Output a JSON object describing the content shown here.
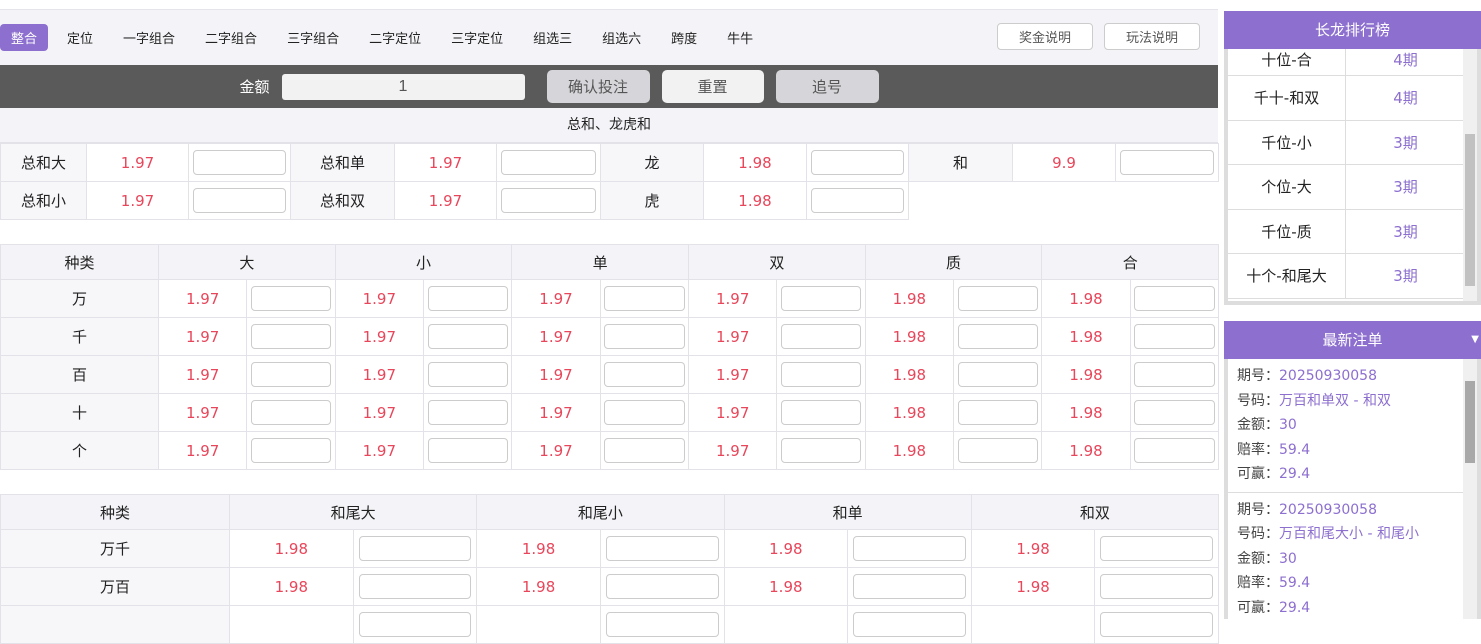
{
  "nav": {
    "tabs": [
      "整合",
      "定位",
      "一字组合",
      "二字组合",
      "三字组合",
      "二字定位",
      "三字定位",
      "组选三",
      "组选六",
      "跨度",
      "牛牛"
    ],
    "active": 0,
    "prize_btn": "奖金说明",
    "rules_btn": "玩法说明"
  },
  "bet_bar": {
    "amount_label": "金额",
    "amount_value": "1",
    "confirm": "确认投注",
    "reset": "重置",
    "chase": "追号"
  },
  "section1": {
    "title": "总和、龙虎和",
    "rows": [
      [
        [
          "总和大",
          "1.97"
        ],
        [
          "总和单",
          "1.97"
        ],
        [
          "龙",
          "1.98"
        ],
        [
          "和",
          "9.9"
        ]
      ],
      [
        [
          "总和小",
          "1.97"
        ],
        [
          "总和双",
          "1.97"
        ],
        [
          "虎",
          "1.98"
        ]
      ]
    ]
  },
  "table2": {
    "headers": [
      "种类",
      "大",
      "小",
      "单",
      "双",
      "质",
      "合"
    ],
    "rows": [
      {
        "label": "万",
        "odds": [
          "1.97",
          "1.97",
          "1.97",
          "1.97",
          "1.98",
          "1.98"
        ]
      },
      {
        "label": "千",
        "odds": [
          "1.97",
          "1.97",
          "1.97",
          "1.97",
          "1.98",
          "1.98"
        ]
      },
      {
        "label": "百",
        "odds": [
          "1.97",
          "1.97",
          "1.97",
          "1.97",
          "1.98",
          "1.98"
        ]
      },
      {
        "label": "十",
        "odds": [
          "1.97",
          "1.97",
          "1.97",
          "1.97",
          "1.98",
          "1.98"
        ]
      },
      {
        "label": "个",
        "odds": [
          "1.97",
          "1.97",
          "1.97",
          "1.97",
          "1.98",
          "1.98"
        ]
      }
    ]
  },
  "table3": {
    "headers": [
      "种类",
      "和尾大",
      "和尾小",
      "和单",
      "和双"
    ],
    "rows": [
      {
        "label": "万千",
        "odds": [
          "1.98",
          "1.98",
          "1.98",
          "1.98"
        ]
      },
      {
        "label": "万百",
        "odds": [
          "1.98",
          "1.98",
          "1.98",
          "1.98"
        ]
      },
      {
        "label": "",
        "odds": [
          "",
          "",
          "",
          ""
        ]
      }
    ]
  },
  "ranking": {
    "title": "长龙排行榜",
    "items": [
      [
        "十位-合",
        "4期"
      ],
      [
        "千十-和双",
        "4期"
      ],
      [
        "千位-小",
        "3期"
      ],
      [
        "个位-大",
        "3期"
      ],
      [
        "千位-质",
        "3期"
      ],
      [
        "十个-和尾大",
        "3期"
      ]
    ]
  },
  "orders": {
    "title": "最新注单",
    "labels": {
      "issue": "期号：",
      "number": "号码：",
      "amount": "金额：",
      "odds": "赔率：",
      "win": "可赢："
    },
    "items": [
      {
        "issue": "20250930058",
        "number": "万百和单双 - 和双",
        "amount": "30",
        "odds": "59.4",
        "win": "29.4"
      },
      {
        "issue": "20250930058",
        "number": "万百和尾大小 - 和尾小",
        "amount": "30",
        "odds": "59.4",
        "win": "29.4"
      }
    ]
  },
  "colors": {
    "accent": "#8c6fcf",
    "odds": "#e8465a",
    "bar": "#5a5a5a"
  }
}
